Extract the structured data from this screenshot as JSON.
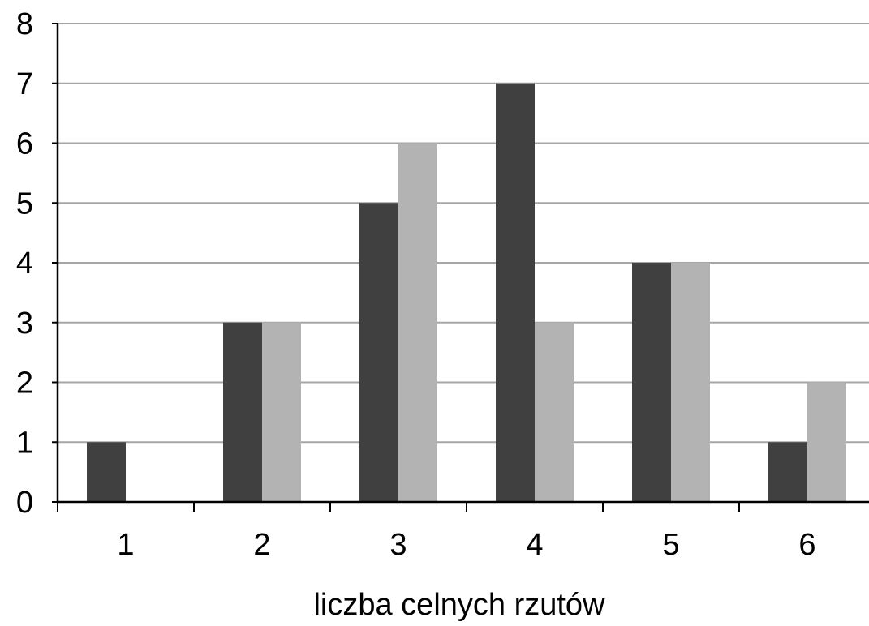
{
  "chart_data": {
    "type": "bar",
    "title": "",
    "xlabel": "liczba celnych rzutów",
    "ylabel": "",
    "categories": [
      "1",
      "2",
      "3",
      "4",
      "5",
      "6"
    ],
    "series": [
      {
        "values": [
          1,
          3,
          5,
          7,
          4,
          1
        ],
        "color": "#404040"
      },
      {
        "values": [
          0,
          3,
          6,
          3,
          4,
          2
        ],
        "color": "#b3b3b3"
      }
    ],
    "ylim": [
      0,
      8
    ],
    "yticks": [
      "0",
      "1",
      "2",
      "3",
      "4",
      "5",
      "6",
      "7",
      "8"
    ],
    "grid": true,
    "legend": "none"
  }
}
